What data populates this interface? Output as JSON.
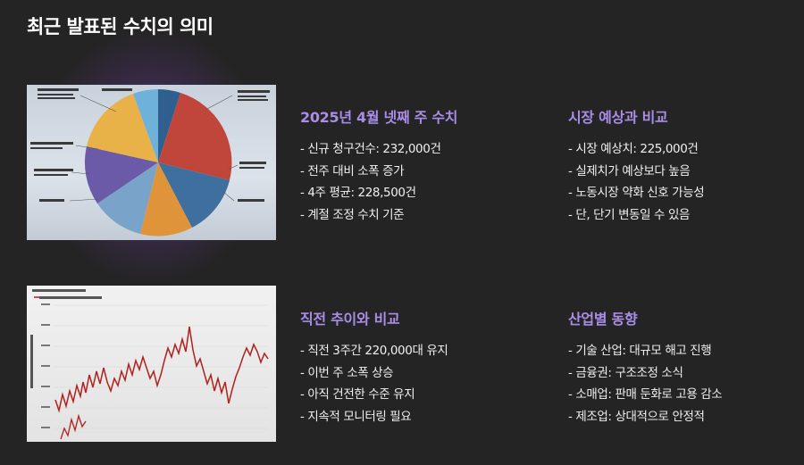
{
  "page": {
    "title": "최근 발표된 수치의 의미"
  },
  "sections": [
    {
      "heading": "2025년 4월 넷째 주 수치",
      "items": [
        "- 신규 청구건수: 232,000건",
        "- 전주 대비 소폭 증가",
        "- 4주 평균: 228,500건",
        "- 계절 조정 수치 기준"
      ]
    },
    {
      "heading": "시장 예상과 비교",
      "items": [
        "- 시장 예상치: 225,000건",
        "- 실제치가 예상보다 높음",
        "- 노동시장 약화 신호 가능성",
        "- 단, 단기 변동일 수 있음"
      ]
    },
    {
      "heading": "직전 추이와 비교",
      "items": [
        "- 직전 3주간 220,000대 유지",
        "- 이번 주 소폭 상승",
        "- 아직 건전한 수준 유지",
        "- 지속적 모니터링 필요"
      ]
    },
    {
      "heading": "산업별 동향",
      "items": [
        "- 기술 산업: 대규모 해고 진행",
        "- 금융권: 구조조정 소식",
        "- 소매업: 판매 둔화로 고용 감소",
        "- 제조업: 상대적으로 안정적"
      ]
    }
  ],
  "images": {
    "pie_icon": "pie-chart-image",
    "line_icon": "line-chart-image",
    "colors": {
      "accent": "#a98de6",
      "pie": [
        "#2f5f8f",
        "#c0463b",
        "#3e6f9e",
        "#e0943a",
        "#7aa3c9",
        "#6b5aa8",
        "#e9b248",
        "#6fb2d9"
      ],
      "line": "#b0201c"
    }
  }
}
